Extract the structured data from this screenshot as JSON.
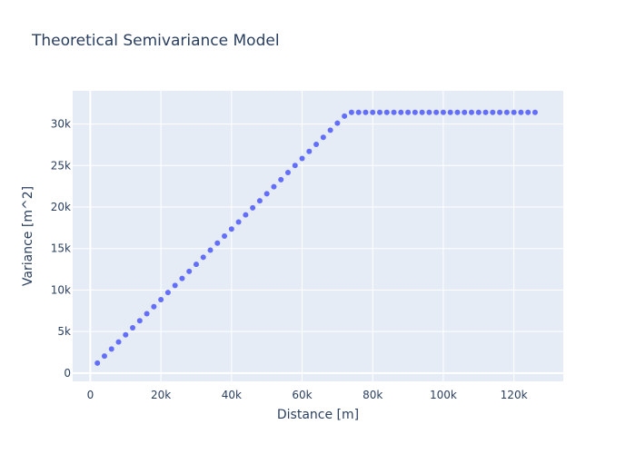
{
  "chart_data": {
    "type": "scatter",
    "title": "Theoretical Semivariance Model",
    "xlabel": "Distance [m]",
    "ylabel": "Variance [m^2]",
    "xlim": [
      -5000,
      134000
    ],
    "ylim": [
      -1000,
      34000
    ],
    "x_ticks": [
      0,
      20000,
      40000,
      60000,
      80000,
      100000,
      120000
    ],
    "x_tick_labels": [
      "0",
      "20k",
      "40k",
      "60k",
      "80k",
      "100k",
      "120k"
    ],
    "y_ticks": [
      0,
      5000,
      10000,
      15000,
      20000,
      25000,
      30000
    ],
    "y_tick_labels": [
      "0",
      "5k",
      "10k",
      "15k",
      "20k",
      "25k",
      "30k"
    ],
    "grid": true,
    "series": [
      {
        "marker_color": "#636efa",
        "x": [
          2000,
          4000,
          6000,
          8000,
          10000,
          12000,
          14000,
          16000,
          18000,
          20000,
          22000,
          24000,
          26000,
          28000,
          30000,
          32000,
          34000,
          36000,
          38000,
          40000,
          42000,
          44000,
          46000,
          48000,
          50000,
          52000,
          54000,
          56000,
          58000,
          60000,
          62000,
          64000,
          66000,
          68000,
          70000,
          72000,
          74000,
          76000,
          78000,
          80000,
          82000,
          84000,
          86000,
          88000,
          90000,
          92000,
          94000,
          96000,
          98000,
          100000,
          102000,
          104000,
          106000,
          108000,
          110000,
          112000,
          114000,
          116000,
          118000,
          120000,
          122000,
          124000,
          126000
        ],
        "y": [
          1200,
          2050,
          2900,
          3750,
          4600,
          5450,
          6300,
          7150,
          8000,
          8850,
          9700,
          10550,
          11400,
          12250,
          13100,
          13950,
          14800,
          15650,
          16500,
          17350,
          18200,
          19050,
          19900,
          20750,
          21600,
          22450,
          23300,
          24150,
          25000,
          25850,
          26700,
          27550,
          28400,
          29250,
          30100,
          30950,
          31400,
          31400,
          31400,
          31400,
          31400,
          31400,
          31400,
          31400,
          31400,
          31400,
          31400,
          31400,
          31400,
          31400,
          31400,
          31400,
          31400,
          31400,
          31400,
          31400,
          31400,
          31400,
          31400,
          31400,
          31400,
          31400,
          31400
        ]
      }
    ]
  },
  "colors": {
    "plot_background": "#e5ecf6",
    "grid": "#ffffff",
    "text": "#2a3f5f",
    "marker": "#636efa"
  }
}
